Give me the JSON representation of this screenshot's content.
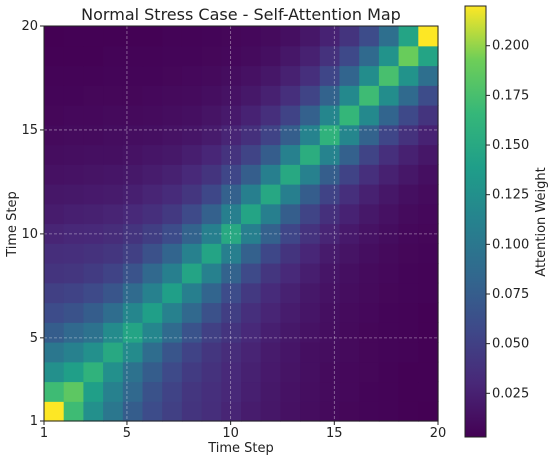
{
  "chart_data": {
    "type": "heatmap",
    "title": "Normal Stress Case - Self-Attention Map",
    "xlabel": "Time Step",
    "ylabel": "Time Step",
    "x_ticks": [
      "1",
      "5",
      "10",
      "15",
      "20"
    ],
    "y_ticks": [
      "1",
      "5",
      "10",
      "15",
      "20"
    ],
    "x_range": [
      1,
      20
    ],
    "y_range": [
      1,
      20
    ],
    "grid": true,
    "colormap": "viridis",
    "colorbar": {
      "label": "Attention Weight",
      "ticks": [
        "0.025",
        "0.050",
        "0.075",
        "0.100",
        "0.125",
        "0.150",
        "0.175",
        "0.200"
      ],
      "range": [
        0.003,
        0.22
      ]
    },
    "matrix": [
      [
        0.22,
        0.17,
        0.125,
        0.1,
        0.075,
        0.06,
        0.05,
        0.04,
        0.035,
        0.028,
        0.022,
        0.018,
        0.014,
        0.011,
        0.009,
        0.007,
        0.006,
        0.005,
        0.004,
        0.003
      ],
      [
        0.17,
        0.185,
        0.14,
        0.11,
        0.085,
        0.065,
        0.052,
        0.042,
        0.036,
        0.03,
        0.024,
        0.019,
        0.015,
        0.012,
        0.01,
        0.008,
        0.006,
        0.005,
        0.004,
        0.004
      ],
      [
        0.125,
        0.14,
        0.16,
        0.125,
        0.095,
        0.075,
        0.058,
        0.046,
        0.038,
        0.031,
        0.025,
        0.02,
        0.016,
        0.013,
        0.01,
        0.008,
        0.007,
        0.005,
        0.004,
        0.004
      ],
      [
        0.1,
        0.11,
        0.125,
        0.15,
        0.12,
        0.09,
        0.068,
        0.052,
        0.042,
        0.034,
        0.027,
        0.021,
        0.017,
        0.013,
        0.011,
        0.009,
        0.007,
        0.006,
        0.005,
        0.004
      ],
      [
        0.075,
        0.085,
        0.095,
        0.12,
        0.145,
        0.115,
        0.088,
        0.066,
        0.05,
        0.04,
        0.031,
        0.024,
        0.019,
        0.015,
        0.012,
        0.009,
        0.007,
        0.006,
        0.005,
        0.004
      ],
      [
        0.06,
        0.065,
        0.075,
        0.09,
        0.115,
        0.14,
        0.11,
        0.085,
        0.064,
        0.048,
        0.036,
        0.028,
        0.022,
        0.017,
        0.013,
        0.01,
        0.008,
        0.006,
        0.005,
        0.004
      ],
      [
        0.05,
        0.052,
        0.058,
        0.068,
        0.088,
        0.11,
        0.14,
        0.108,
        0.082,
        0.06,
        0.044,
        0.033,
        0.025,
        0.019,
        0.015,
        0.011,
        0.009,
        0.007,
        0.006,
        0.005
      ],
      [
        0.04,
        0.042,
        0.046,
        0.052,
        0.066,
        0.085,
        0.108,
        0.145,
        0.11,
        0.08,
        0.058,
        0.042,
        0.031,
        0.023,
        0.017,
        0.013,
        0.01,
        0.008,
        0.006,
        0.005
      ],
      [
        0.035,
        0.036,
        0.038,
        0.042,
        0.05,
        0.064,
        0.082,
        0.11,
        0.145,
        0.108,
        0.078,
        0.056,
        0.04,
        0.029,
        0.021,
        0.016,
        0.012,
        0.009,
        0.007,
        0.006
      ],
      [
        0.028,
        0.03,
        0.031,
        0.034,
        0.04,
        0.048,
        0.06,
        0.08,
        0.108,
        0.15,
        0.108,
        0.078,
        0.055,
        0.039,
        0.028,
        0.02,
        0.015,
        0.011,
        0.008,
        0.007
      ],
      [
        0.022,
        0.024,
        0.025,
        0.027,
        0.031,
        0.036,
        0.044,
        0.058,
        0.078,
        0.108,
        0.145,
        0.108,
        0.076,
        0.053,
        0.037,
        0.026,
        0.019,
        0.014,
        0.01,
        0.008
      ],
      [
        0.018,
        0.019,
        0.02,
        0.021,
        0.024,
        0.028,
        0.033,
        0.042,
        0.056,
        0.078,
        0.108,
        0.148,
        0.108,
        0.075,
        0.052,
        0.036,
        0.025,
        0.018,
        0.013,
        0.01
      ],
      [
        0.014,
        0.015,
        0.016,
        0.017,
        0.019,
        0.022,
        0.025,
        0.031,
        0.04,
        0.055,
        0.076,
        0.108,
        0.15,
        0.11,
        0.076,
        0.052,
        0.036,
        0.025,
        0.018,
        0.013
      ],
      [
        0.011,
        0.012,
        0.013,
        0.013,
        0.015,
        0.017,
        0.019,
        0.023,
        0.029,
        0.039,
        0.053,
        0.075,
        0.11,
        0.155,
        0.112,
        0.078,
        0.053,
        0.036,
        0.025,
        0.018
      ],
      [
        0.009,
        0.01,
        0.01,
        0.011,
        0.012,
        0.013,
        0.015,
        0.017,
        0.021,
        0.028,
        0.037,
        0.052,
        0.076,
        0.112,
        0.16,
        0.115,
        0.08,
        0.055,
        0.038,
        0.026
      ],
      [
        0.007,
        0.008,
        0.008,
        0.009,
        0.009,
        0.01,
        0.011,
        0.013,
        0.016,
        0.02,
        0.026,
        0.036,
        0.052,
        0.078,
        0.115,
        0.165,
        0.118,
        0.082,
        0.057,
        0.04
      ],
      [
        0.006,
        0.006,
        0.007,
        0.007,
        0.007,
        0.008,
        0.009,
        0.01,
        0.012,
        0.015,
        0.019,
        0.025,
        0.036,
        0.053,
        0.08,
        0.118,
        0.17,
        0.122,
        0.086,
        0.06
      ],
      [
        0.005,
        0.005,
        0.005,
        0.006,
        0.006,
        0.006,
        0.007,
        0.008,
        0.009,
        0.011,
        0.014,
        0.018,
        0.025,
        0.036,
        0.055,
        0.082,
        0.122,
        0.175,
        0.128,
        0.092
      ],
      [
        0.004,
        0.004,
        0.004,
        0.005,
        0.005,
        0.005,
        0.006,
        0.006,
        0.007,
        0.008,
        0.01,
        0.013,
        0.018,
        0.025,
        0.038,
        0.057,
        0.086,
        0.128,
        0.19,
        0.145
      ],
      [
        0.003,
        0.004,
        0.004,
        0.004,
        0.004,
        0.004,
        0.005,
        0.005,
        0.006,
        0.007,
        0.008,
        0.01,
        0.013,
        0.018,
        0.026,
        0.04,
        0.06,
        0.092,
        0.145,
        0.22
      ]
    ]
  }
}
